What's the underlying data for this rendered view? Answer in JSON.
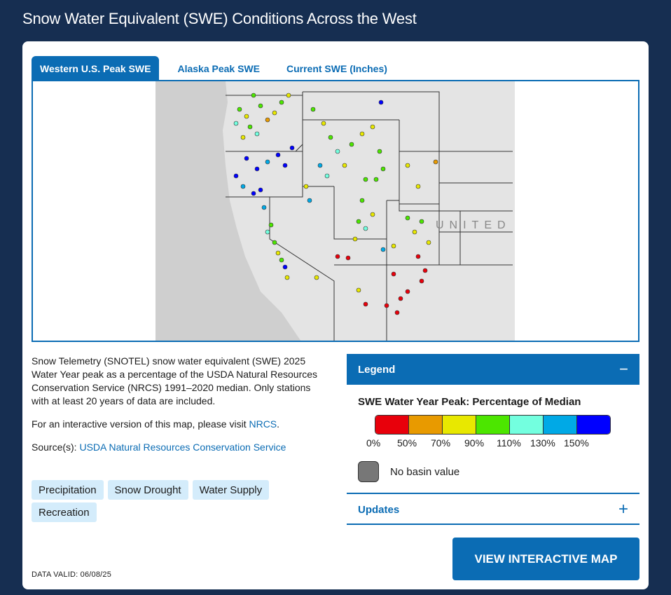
{
  "title": "Snow Water Equivalent (SWE) Conditions Across the West",
  "tabs": [
    {
      "label": "Western U.S. Peak SWE",
      "active": true
    },
    {
      "label": "Alaska Peak SWE",
      "active": false
    },
    {
      "label": "Current SWE (Inches)",
      "active": false
    }
  ],
  "map": {
    "country_label": "UNITED S"
  },
  "description": {
    "text": "Snow Telemetry (SNOTEL) snow water equivalent (SWE) 2025 Water Year peak as a percentage of the USDA Natural Resources Conservation Service (NRCS) 1991–2020 median. Only stations with at least 20 years of data are included.",
    "interactive_prefix": "For an interactive version of this map, please visit ",
    "interactive_link": "NRCS",
    "interactive_suffix": ".",
    "source_prefix": "Source(s): ",
    "source_link": "USDA Natural Resources Conservation Service"
  },
  "tags": [
    "Precipitation",
    "Snow Drought",
    "Water Supply",
    "Recreation"
  ],
  "data_valid": "DATA VALID: 06/08/25",
  "legend": {
    "header": "Legend",
    "toggle": "−",
    "title": "SWE Water Year Peak: Percentage of Median",
    "colors": [
      "#e8000b",
      "#e89a00",
      "#e8e800",
      "#4ce600",
      "#73ffdf",
      "#00a9e6",
      "#0000ff"
    ],
    "labels": [
      "0%",
      "50%",
      "70%",
      "90%",
      "110%",
      "130%",
      "150%"
    ],
    "no_basin_color": "#777777",
    "no_basin_label": "No basin value"
  },
  "updates": {
    "label": "Updates",
    "toggle": "+"
  },
  "cta": "VIEW INTERACTIVE MAP"
}
